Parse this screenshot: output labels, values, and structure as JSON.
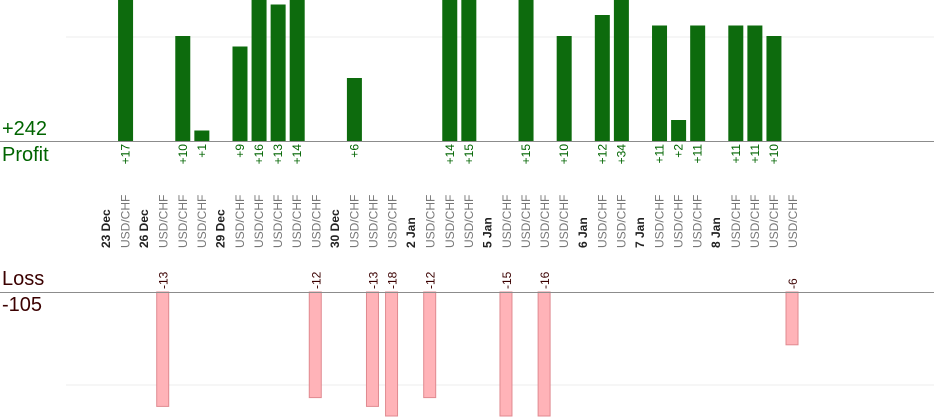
{
  "summary": {
    "profit_total": "+242",
    "profit_label": "Profit",
    "loss_label": "Loss",
    "loss_total": "-105"
  },
  "chart_data": {
    "type": "bar",
    "title": "",
    "xlabel": "",
    "ylabel": "",
    "grid": true,
    "colors": {
      "profit": "#0d6b0d",
      "profit_text": "#006400",
      "loss": "#ffb3b8",
      "loss_stroke": "#e08a90",
      "loss_text": "#3b0000",
      "symbol_text": "#777777",
      "date_text": "#222222"
    },
    "groups": [
      {
        "date": "23 Dec",
        "trades": [
          {
            "symbol": "USD/CHF",
            "value": 17
          }
        ]
      },
      {
        "date": "26 Dec",
        "trades": [
          {
            "symbol": "USD/CHF",
            "value": -13
          },
          {
            "symbol": "USD/CHF",
            "value": 10
          },
          {
            "symbol": "USD/CHF",
            "value": 1
          }
        ]
      },
      {
        "date": "29 Dec",
        "trades": [
          {
            "symbol": "USD/CHF",
            "value": 9
          },
          {
            "symbol": "USD/CHF",
            "value": 16
          },
          {
            "symbol": "USD/CHF",
            "value": 13
          },
          {
            "symbol": "USD/CHF",
            "value": 14
          },
          {
            "symbol": "USD/CHF",
            "value": -12
          }
        ]
      },
      {
        "date": "30 Dec",
        "trades": [
          {
            "symbol": "USD/CHF",
            "value": 6
          },
          {
            "symbol": "USD/CHF",
            "value": -13
          },
          {
            "symbol": "USD/CHF",
            "value": -18
          }
        ]
      },
      {
        "date": "2 Jan",
        "trades": [
          {
            "symbol": "USD/CHF",
            "value": -12
          },
          {
            "symbol": "USD/CHF",
            "value": 14
          },
          {
            "symbol": "USD/CHF",
            "value": 15
          }
        ]
      },
      {
        "date": "5 Jan",
        "trades": [
          {
            "symbol": "USD/CHF",
            "value": -15
          },
          {
            "symbol": "USD/CHF",
            "value": 15
          },
          {
            "symbol": "USD/CHF",
            "value": -16
          },
          {
            "symbol": "USD/CHF",
            "value": 10
          }
        ]
      },
      {
        "date": "6 Jan",
        "trades": [
          {
            "symbol": "USD/CHF",
            "value": 12
          },
          {
            "symbol": "USD/CHF",
            "value": 34
          }
        ]
      },
      {
        "date": "7 Jan",
        "trades": [
          {
            "symbol": "USD/CHF",
            "value": 11
          },
          {
            "symbol": "USD/CHF",
            "value": 2
          },
          {
            "symbol": "USD/CHF",
            "value": 11
          }
        ]
      },
      {
        "date": "8 Jan",
        "trades": [
          {
            "symbol": "USD/CHF",
            "value": 11
          },
          {
            "symbol": "USD/CHF",
            "value": 11
          },
          {
            "symbol": "USD/CHF",
            "value": 10
          },
          {
            "symbol": "USD/CHF",
            "value": -6
          }
        ]
      }
    ]
  }
}
